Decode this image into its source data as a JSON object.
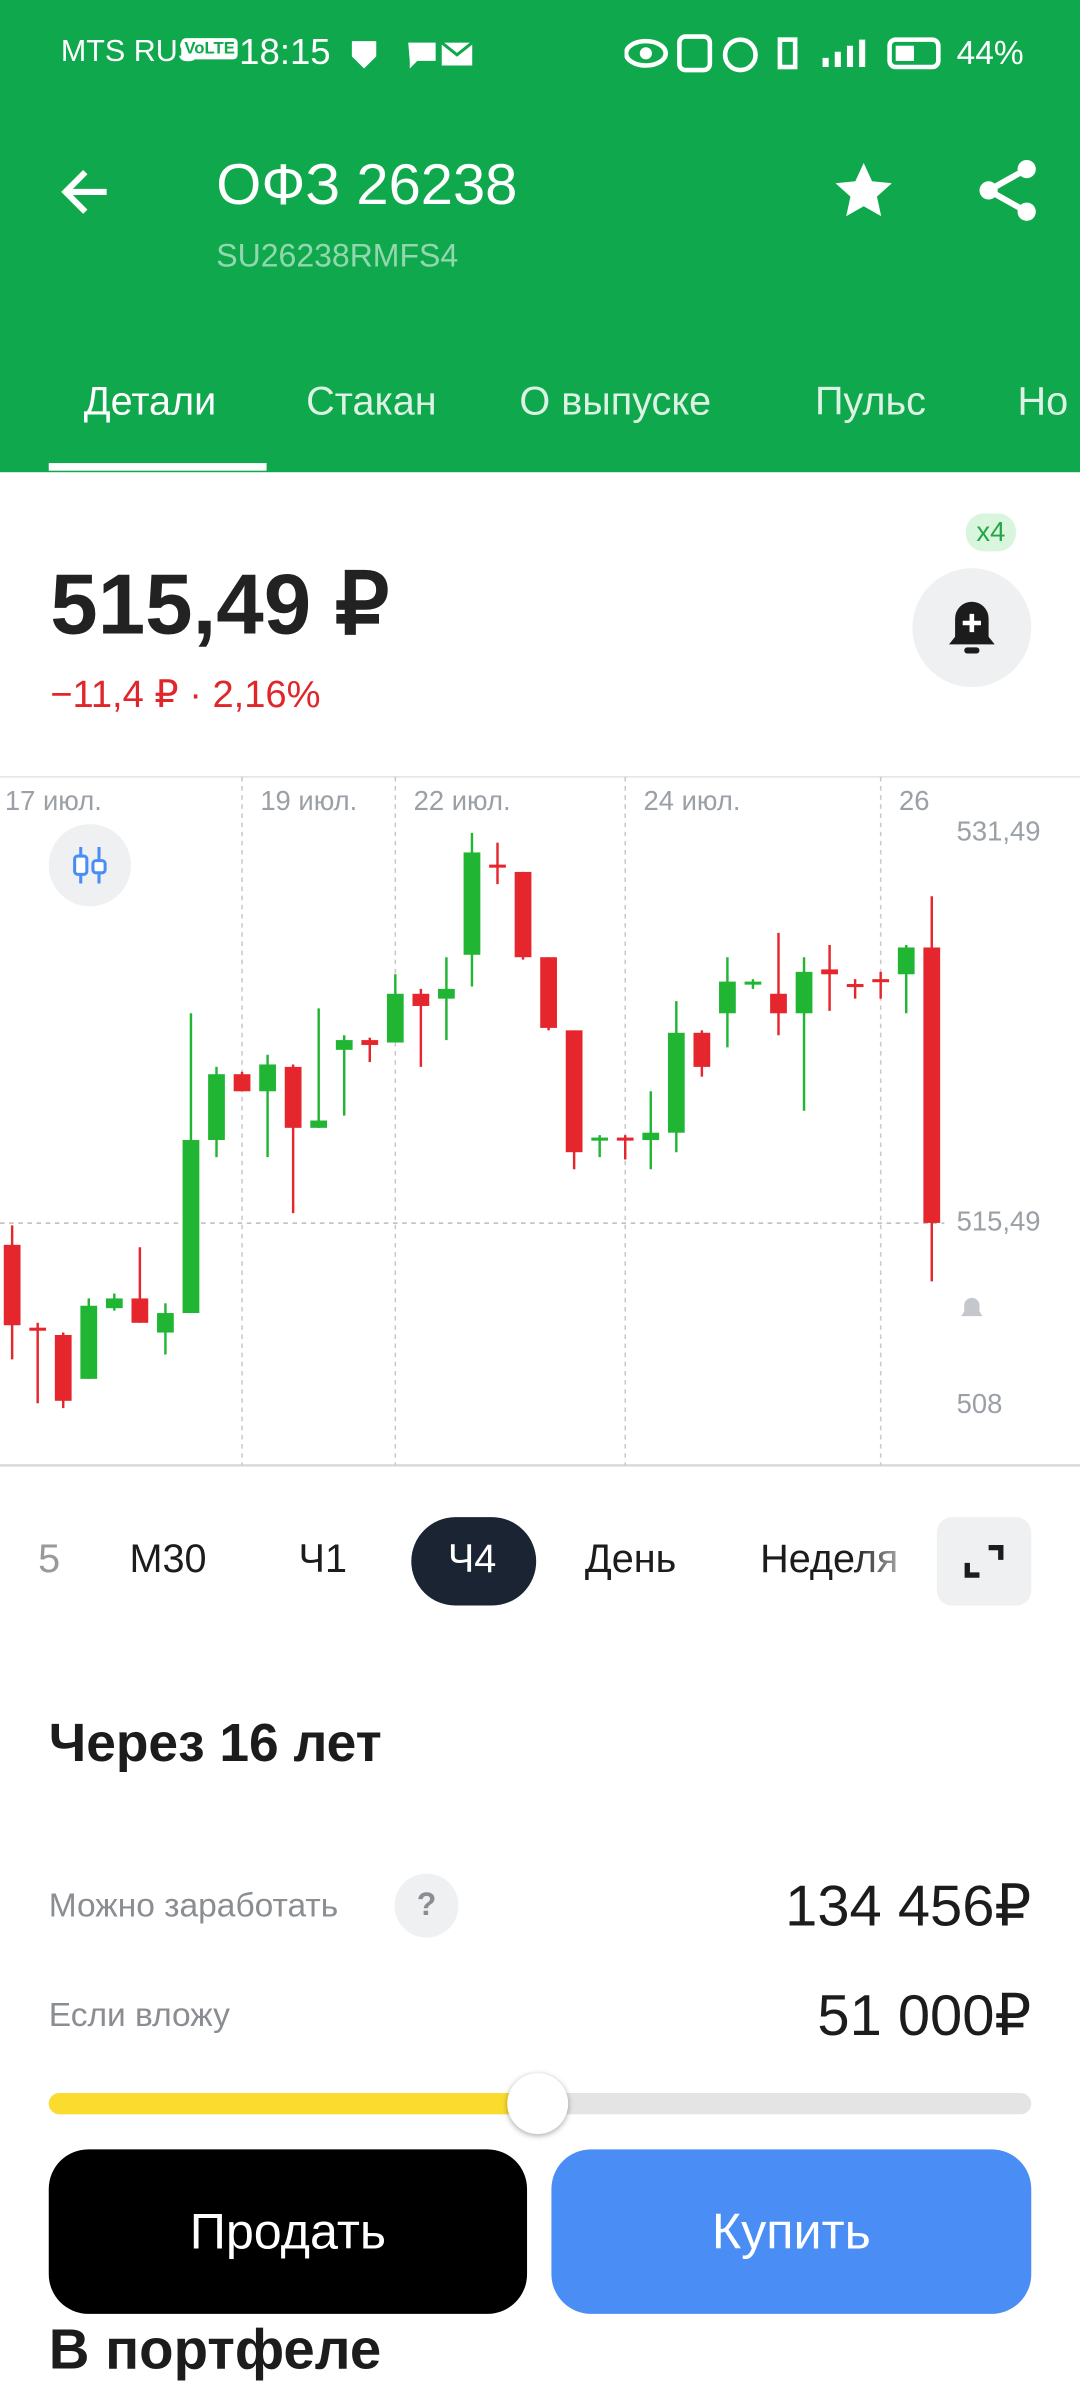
{
  "status_bar": {
    "carrier": "MTS RUS",
    "volte": "VoLTE",
    "time": "18:15",
    "battery": "44%"
  },
  "header": {
    "title": "ОФЗ 26238",
    "subtitle": "SU26238RMFS4"
  },
  "tabs": [
    "Детали",
    "Стакан",
    "О выпуске",
    "Пульс",
    "Но"
  ],
  "price": {
    "value": "515,49 ₽",
    "change": "−11,4 ₽ · 2,16%",
    "alerts_badge": "x4"
  },
  "chart_data": {
    "type": "candlestick",
    "categories": [
      "17 июл.",
      null,
      null,
      null,
      null,
      null,
      null,
      null,
      null,
      null,
      "19 июл.",
      null,
      null,
      null,
      null,
      null,
      "22 июл.",
      null,
      null,
      null,
      null,
      null,
      null,
      null,
      null,
      "24 июл.",
      null,
      null,
      null,
      null,
      null,
      null,
      null,
      null,
      null,
      "26",
      null,
      null
    ],
    "open": [
      null,
      514.6,
      511.2,
      510.9,
      509.1,
      512.0,
      512.4,
      511.0,
      511.8,
      518.9,
      521.6,
      520.9,
      521.9,
      519.4,
      522.6,
      523.0,
      522.9,
      524.9,
      524.7,
      526.5,
      530.2,
      529.9,
      526.4,
      523.4,
      518.9,
      519.0,
      518.9,
      519.2,
      523.3,
      524.1,
      525.3,
      524.9,
      524.1,
      525.9,
      525.3,
      525.5,
      525.7,
      526.8
    ],
    "high": [
      null,
      515.4,
      511.4,
      511.0,
      512.4,
      512.6,
      514.5,
      512.2,
      524.1,
      521.9,
      521.7,
      522.4,
      522.0,
      524.3,
      523.2,
      523.1,
      525.7,
      525.1,
      526.4,
      531.5,
      531.1,
      529.9,
      526.4,
      523.4,
      519.1,
      519.1,
      520.9,
      524.6,
      523.4,
      526.4,
      525.5,
      527.4,
      526.4,
      526.9,
      525.5,
      525.8,
      526.9,
      528.9
    ],
    "low": [
      null,
      509.9,
      508.1,
      507.9,
      509.1,
      511.9,
      511.4,
      510.1,
      511.8,
      518.2,
      520.9,
      518.2,
      515.9,
      519.4,
      519.9,
      522.1,
      522.9,
      521.9,
      523.0,
      525.2,
      529.4,
      526.3,
      523.4,
      517.7,
      518.2,
      518.1,
      517.7,
      518.4,
      521.5,
      522.7,
      525.1,
      523.2,
      520.1,
      524.2,
      524.7,
      524.7,
      524.1,
      513.1
    ],
    "close": [
      null,
      511.3,
      511.1,
      508.2,
      512.1,
      512.4,
      511.4,
      511.8,
      518.9,
      521.6,
      520.9,
      522.0,
      519.4,
      519.7,
      523.0,
      522.8,
      524.9,
      524.4,
      525.1,
      530.7,
      530.1,
      526.4,
      523.5,
      518.4,
      519.0,
      518.9,
      519.2,
      523.3,
      521.9,
      525.4,
      525.4,
      524.1,
      525.8,
      525.7,
      525.2,
      525.4,
      526.8,
      515.5
    ],
    "up_color": "#21b534",
    "down_color": "#e5262c",
    "ylim": [
      505.55,
      533.8
    ],
    "yticks": [
      {
        "value": 531.49,
        "label": "531,49"
      },
      {
        "value": 515.49,
        "label": "515,49"
      },
      508
    ],
    "last_price": 515.49
  },
  "timeframes": {
    "items": [
      "5",
      "М30",
      "Ч1",
      "Ч4",
      "День",
      "Неделя"
    ]
  },
  "forecast": {
    "title": "Через 16 лет",
    "earn_label": "Можно заработать",
    "help": "?",
    "earn_value": "134 456₽",
    "invest_label": "Если вложу",
    "invest_value": "51 000₽"
  },
  "buttons": {
    "sell": "Продать",
    "buy": "Купить"
  },
  "portfolio": {
    "title": "В портфеле"
  }
}
